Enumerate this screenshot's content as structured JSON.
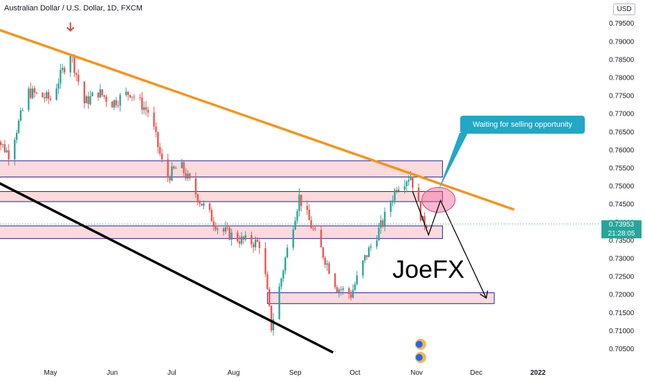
{
  "header": {
    "symbol_title": "Australian Dollar / U.S. Dollar, 1D, FXCM",
    "currency": "USD"
  },
  "price_label": {
    "price": "0.73953",
    "countdown": "21:28:05"
  },
  "annotations": {
    "callout": "Waiting for selling opportunity",
    "watermark": "JoeFX"
  },
  "chart_data": {
    "type": "candlestick",
    "x_tick_labels": [
      "May",
      "Jun",
      "Jul",
      "Aug",
      "Sep",
      "Oct",
      "Nov",
      "Dec",
      "2022"
    ],
    "y_tick_labels": [
      "0.79500",
      "0.79000",
      "0.78500",
      "0.78000",
      "0.77500",
      "0.77000",
      "0.76500",
      "0.76000",
      "0.75500",
      "0.75000",
      "0.74500",
      "0.74000",
      "0.73500",
      "0.73000",
      "0.72500",
      "0.72000",
      "0.71500",
      "0.71000",
      "0.70500"
    ],
    "ylim": [
      0.703,
      0.798
    ],
    "last_price": 0.73953,
    "colors": {
      "up": "#26a69a",
      "down": "#ef5350",
      "zone_fill": "#fadadd",
      "zone_border": "#1e1e9c",
      "trendline_upper": "#f7931a",
      "trendline_lower": "#000000",
      "callout": "#22a7c6"
    },
    "candle_keypoints": [
      {
        "date": "Apr 01",
        "close": 0.765
      },
      {
        "date": "Apr 10",
        "close": 0.759
      },
      {
        "date": "Apr 20",
        "close": 0.776
      },
      {
        "date": "May 01",
        "close": 0.774
      },
      {
        "date": "May 11",
        "close": 0.787
      },
      {
        "date": "May 18",
        "close": 0.773
      },
      {
        "date": "May 25",
        "close": 0.776
      },
      {
        "date": "Jun 01",
        "close": 0.773
      },
      {
        "date": "Jun 10",
        "close": 0.776
      },
      {
        "date": "Jun 20",
        "close": 0.77
      },
      {
        "date": "Jun 28",
        "close": 0.752
      },
      {
        "date": "Jul 05",
        "close": 0.756
      },
      {
        "date": "Jul 15",
        "close": 0.746
      },
      {
        "date": "Jul 25",
        "close": 0.738
      },
      {
        "date": "Aug 05",
        "close": 0.735
      },
      {
        "date": "Aug 15",
        "close": 0.734
      },
      {
        "date": "Aug 20",
        "close": 0.711
      },
      {
        "date": "Aug 27",
        "close": 0.73
      },
      {
        "date": "Sep 03",
        "close": 0.747
      },
      {
        "date": "Sep 12",
        "close": 0.735
      },
      {
        "date": "Sep 22",
        "close": 0.722
      },
      {
        "date": "Sep 29",
        "close": 0.72
      },
      {
        "date": "Oct 06",
        "close": 0.73
      },
      {
        "date": "Oct 15",
        "close": 0.74
      },
      {
        "date": "Oct 22",
        "close": 0.75
      },
      {
        "date": "Oct 29",
        "close": 0.753
      },
      {
        "date": "Nov 04",
        "close": 0.74
      },
      {
        "date": "Nov 08",
        "close": 0.7395
      }
    ],
    "zones": [
      {
        "from": "Apr 01",
        "to": "Nov 14",
        "low": 0.7525,
        "high": 0.757
      },
      {
        "from": "Apr 01",
        "to": "Nov 14",
        "low": 0.7457,
        "high": 0.7485
      },
      {
        "from": "Apr 01",
        "to": "Nov 14",
        "low": 0.7355,
        "high": 0.739
      },
      {
        "from": "Aug 18",
        "to": "Dec 10",
        "low": 0.7175,
        "high": 0.7205
      }
    ],
    "trendlines": [
      {
        "name": "upper",
        "points": [
          [
            "Apr 01",
            0.794
          ],
          [
            "Dec 20",
            0.7435
          ]
        ]
      },
      {
        "name": "lower",
        "points": [
          [
            "Apr 01",
            0.752
          ],
          [
            "Sep 20",
            0.704
          ]
        ]
      }
    ],
    "projection_path": [
      [
        "Oct 30",
        0.7485
      ],
      [
        "Nov 07",
        0.7365
      ],
      [
        "Nov 13",
        0.746
      ],
      [
        "Dec 06",
        0.719
      ]
    ],
    "highlight": {
      "date": "Nov 12",
      "price": 0.7462
    },
    "peak_marker": {
      "date": "May 11",
      "price": 0.7895
    }
  }
}
